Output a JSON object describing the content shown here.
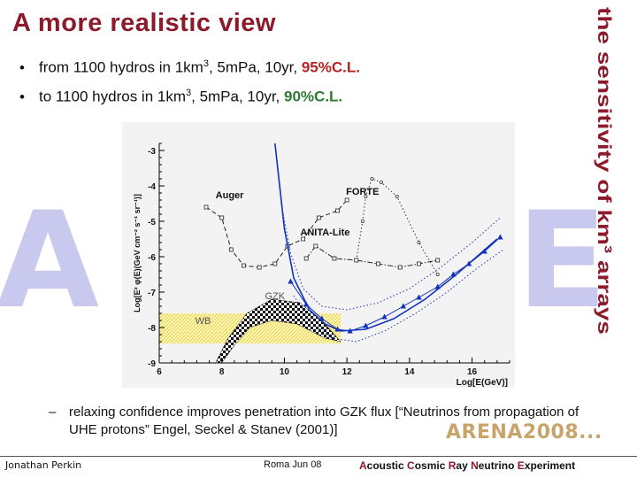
{
  "slide": {
    "title": "A more realistic view",
    "side_title": "the sensitivity of km³ arrays"
  },
  "bullets": [
    {
      "prefix": "from 1100 hydros in 1km",
      "sup": "3",
      "middle": ", 5mPa, 10yr, ",
      "highlight": "95%C.L.",
      "color": "#b82224"
    },
    {
      "prefix": "to 1100 hydros in 1km",
      "sup": "3",
      "middle": ", 5mPa, 10yr, ",
      "highlight": "90%C.L.",
      "color": "#2f7a31"
    }
  ],
  "background_letters": [
    "A",
    "E"
  ],
  "sub_bullet": "relaxing confidence improves penetration into GZK flux [“Neutrinos from propagation of UHE protons” Engel, Seckel & Stanev (2001)]",
  "logo_text": "ARENA2008...",
  "footer": {
    "author": "Jonathan Perkin",
    "date": "Roma Jun 08",
    "acronym_words": [
      {
        "initial": "A",
        "rest": "coustic "
      },
      {
        "initial": "C",
        "rest": "osmic "
      },
      {
        "initial": "R",
        "rest": "ay "
      },
      {
        "initial": "N",
        "rest": "eutrino "
      },
      {
        "initial": "E",
        "rest": "xperiment"
      }
    ]
  },
  "chart_data": {
    "type": "line",
    "xlabel": "Log[E(GeV)]",
    "ylabel": "Log[E² φ(E)(GeV cm⁻² s⁻¹ sr⁻¹)]",
    "xlim": [
      6,
      17.2
    ],
    "ylim": [
      -9,
      -2.8
    ],
    "x_ticks": [
      "6",
      "8",
      "10",
      "12",
      "14",
      "16"
    ],
    "y_ticks": [
      "-3",
      "-4",
      "-5",
      "-6",
      "-7",
      "-8",
      "-9"
    ],
    "annotations": [
      "Auger",
      "FORTE",
      "ANITA-Lite",
      "GZK",
      "WB"
    ],
    "series": [
      {
        "name": "Auger",
        "style": "dashed",
        "points": [
          [
            7.5,
            -4.6
          ],
          [
            8.0,
            -4.9
          ],
          [
            8.3,
            -5.8
          ],
          [
            8.7,
            -6.25
          ],
          [
            9.2,
            -6.3
          ],
          [
            9.7,
            -6.2
          ],
          [
            10.1,
            -5.7
          ],
          [
            10.6,
            -5.5
          ],
          [
            11.1,
            -4.9
          ],
          [
            11.7,
            -4.7
          ],
          [
            12.0,
            -4.4
          ]
        ]
      },
      {
        "name": "FORTE",
        "style": "dotted",
        "points": [
          [
            12.3,
            -6.1
          ],
          [
            12.5,
            -5.0
          ],
          [
            12.6,
            -4.3
          ],
          [
            12.8,
            -3.8
          ],
          [
            13.1,
            -3.9
          ],
          [
            13.6,
            -4.3
          ],
          [
            14.3,
            -5.6
          ],
          [
            14.9,
            -6.5
          ]
        ]
      },
      {
        "name": "ANITA-Lite",
        "style": "dash-dot",
        "points": [
          [
            10.7,
            -6.05
          ],
          [
            11.0,
            -5.7
          ],
          [
            11.6,
            -6.05
          ],
          [
            12.3,
            -6.1
          ],
          [
            13.0,
            -6.2
          ],
          [
            13.7,
            -6.3
          ],
          [
            14.3,
            -6.2
          ],
          [
            14.9,
            -6.1
          ]
        ]
      },
      {
        "name": "sensitivity 95%C.L.",
        "style": "solid",
        "points": [
          [
            9.7,
            -2.8
          ],
          [
            10.0,
            -5.2
          ],
          [
            10.3,
            -6.6
          ],
          [
            10.8,
            -7.5
          ],
          [
            11.3,
            -7.9
          ],
          [
            11.8,
            -8.1
          ],
          [
            12.6,
            -8.05
          ],
          [
            13.5,
            -7.75
          ],
          [
            14.5,
            -7.2
          ],
          [
            15.5,
            -6.5
          ],
          [
            16.8,
            -5.5
          ]
        ]
      },
      {
        "name": "sensitivity 90%C.L.",
        "style": "solid-triangles",
        "points": [
          [
            10.2,
            -6.7
          ],
          [
            10.7,
            -7.35
          ],
          [
            11.2,
            -7.75
          ],
          [
            11.7,
            -8.05
          ],
          [
            12.1,
            -8.1
          ],
          [
            12.6,
            -7.95
          ],
          [
            13.2,
            -7.7
          ],
          [
            13.8,
            -7.4
          ],
          [
            14.3,
            -7.15
          ],
          [
            14.9,
            -6.85
          ],
          [
            15.4,
            -6.5
          ],
          [
            15.9,
            -6.2
          ],
          [
            16.4,
            -5.85
          ],
          [
            16.9,
            -5.45
          ]
        ]
      },
      {
        "name": "dotted envelope upper",
        "style": "dotted",
        "points": [
          [
            9.9,
            -4.5
          ],
          [
            10.2,
            -5.9
          ],
          [
            10.6,
            -6.9
          ],
          [
            11.2,
            -7.4
          ],
          [
            12.0,
            -7.5
          ],
          [
            13.0,
            -7.3
          ],
          [
            14.0,
            -6.9
          ],
          [
            15.0,
            -6.3
          ],
          [
            16.0,
            -5.6
          ],
          [
            16.9,
            -4.9
          ]
        ]
      },
      {
        "name": "dotted envelope lower",
        "style": "dotted",
        "points": [
          [
            10.3,
            -7.1
          ],
          [
            10.8,
            -7.8
          ],
          [
            11.5,
            -8.3
          ],
          [
            12.3,
            -8.4
          ],
          [
            13.2,
            -8.1
          ],
          [
            14.2,
            -7.6
          ],
          [
            15.2,
            -7.0
          ],
          [
            16.2,
            -6.3
          ],
          [
            17.0,
            -5.8
          ]
        ]
      },
      {
        "name": "WB",
        "style": "hatched-band",
        "points": [
          [
            6.0,
            -7.6
          ],
          [
            11.8,
            -7.6
          ],
          [
            11.8,
            -8.45
          ],
          [
            6.0,
            -8.45
          ]
        ]
      },
      {
        "name": "GZK",
        "style": "checkered-band",
        "points": [
          [
            7.8,
            -9.0
          ],
          [
            8.2,
            -8.3
          ],
          [
            8.8,
            -7.6
          ],
          [
            9.6,
            -7.2
          ],
          [
            10.5,
            -7.3
          ],
          [
            11.3,
            -7.9
          ],
          [
            11.8,
            -8.4
          ],
          [
            11.3,
            -8.3
          ],
          [
            10.4,
            -7.9
          ],
          [
            9.6,
            -7.8
          ],
          [
            8.9,
            -8.0
          ],
          [
            8.4,
            -8.5
          ],
          [
            8.0,
            -9.0
          ]
        ]
      }
    ]
  }
}
